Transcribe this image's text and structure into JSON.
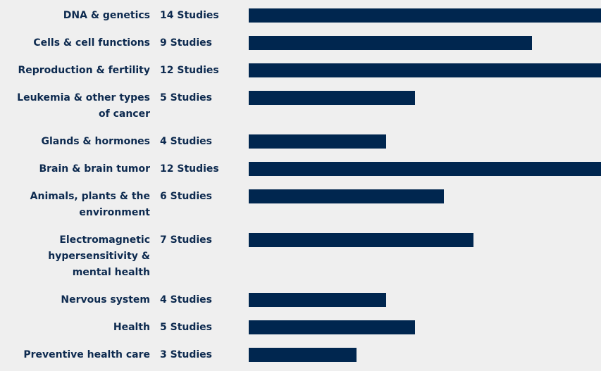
{
  "chart_data": {
    "type": "bar",
    "categories": [
      "DNA & genetics",
      "Cells & cell functions",
      "Reproduction & fertility",
      "Leukemia & other types of cancer",
      "Glands & hormones",
      "Brain & brain tumor",
      "Animals, plants & the environment",
      "Electromagnetic hypersensitivity & mental health",
      "Nervous system",
      "Health",
      "Preventive health care"
    ],
    "values": [
      14,
      9,
      12,
      5,
      4,
      12,
      6,
      7,
      4,
      5,
      3
    ],
    "value_labels": [
      "14 Studies",
      "9 Studies",
      "12 Studies",
      "5 Studies",
      "4 Studies",
      "12 Studies",
      "6 Studies",
      "7 Studies",
      "4 Studies",
      "5 Studies",
      "3 Studies"
    ],
    "color": "#00264f"
  }
}
